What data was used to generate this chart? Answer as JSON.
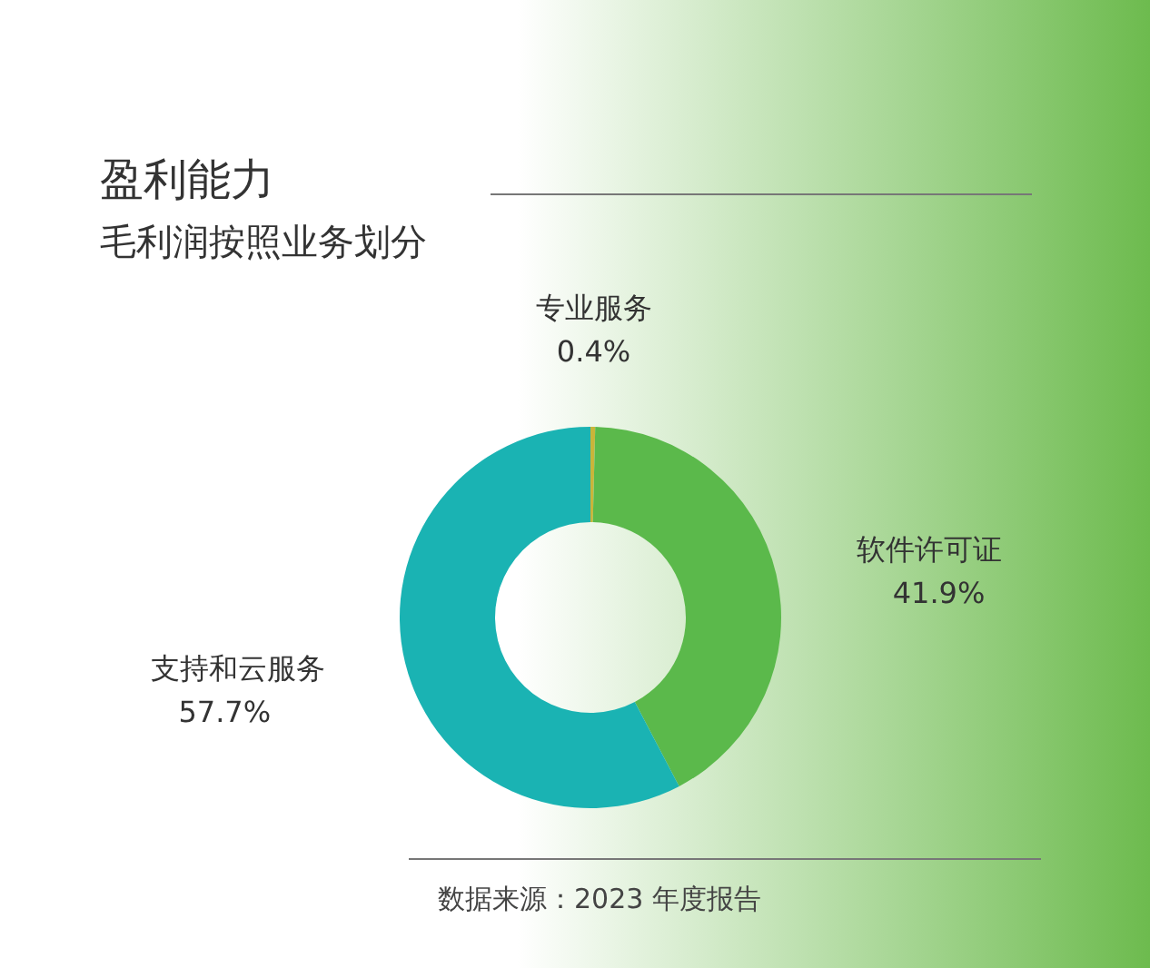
{
  "chart_data": {
    "type": "donut",
    "title": "盈利能力",
    "subtitle": "毛利润按照业务划分",
    "categories": [
      "专业服务",
      "软件许可证",
      "支持和云服务"
    ],
    "values": [
      0.4,
      41.9,
      57.7
    ],
    "colors": [
      "#c9b53a",
      "#5bb94b",
      "#1ab3b3"
    ],
    "value_labels": [
      "0.4%",
      "41.9%",
      "57.7%"
    ],
    "annotations": [
      "数据来源：2023 年度报告"
    ]
  }
}
